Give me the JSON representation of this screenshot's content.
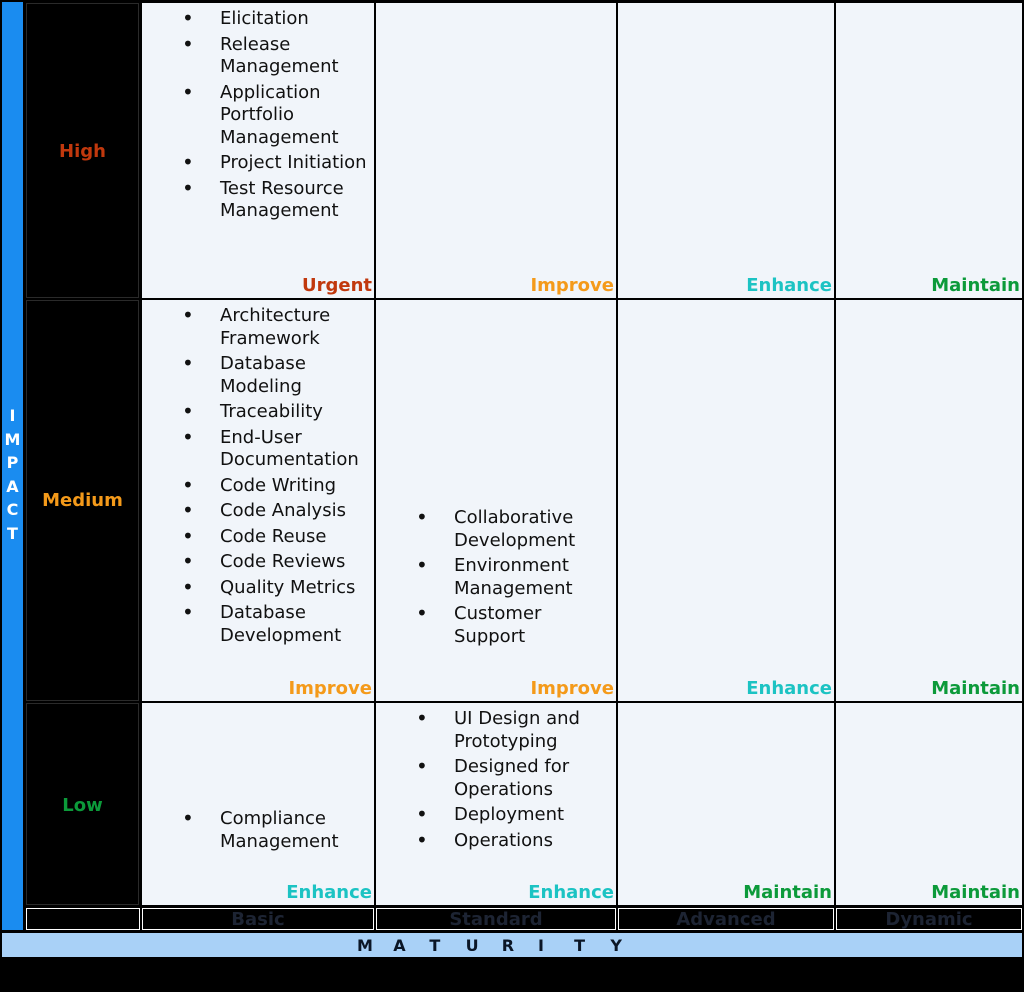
{
  "axis": {
    "impact_letters": [
      "I",
      "M",
      "P",
      "A",
      "C",
      "T"
    ],
    "maturity_letters": [
      "M",
      "A",
      "T",
      "U",
      "R",
      "I",
      "T",
      "Y"
    ]
  },
  "rows": {
    "high": {
      "label": "High"
    },
    "medium": {
      "label": "Medium"
    },
    "low": {
      "label": "Low"
    }
  },
  "columns": [
    "Basic",
    "Standard",
    "Advanced",
    "Dynamic"
  ],
  "cells": {
    "high": {
      "basic": {
        "items": [
          "Elicitation",
          "Release Management",
          "Application Portfolio Management",
          "Project Initiation",
          "Test Resource Management"
        ],
        "status": "Urgent"
      },
      "standard": {
        "status": "Improve"
      },
      "advanced": {
        "status": "Enhance"
      },
      "dynamic": {
        "status": "Maintain"
      }
    },
    "medium": {
      "basic": {
        "items": [
          "Architecture Framework",
          "Database Modeling",
          "Traceability",
          "End-User Documentation",
          "Code Writing",
          "Code Analysis",
          "Code Reuse",
          "Code Reviews",
          "Quality Metrics",
          "Database Development"
        ],
        "status": "Improve"
      },
      "standard": {
        "items": [
          "Collaborative Development",
          "Environment Management",
          "Customer Support"
        ],
        "status": "Improve"
      },
      "advanced": {
        "status": "Enhance"
      },
      "dynamic": {
        "status": "Maintain"
      }
    },
    "low": {
      "basic": {
        "items": [
          "Compliance Management"
        ],
        "status": "Enhance"
      },
      "standard": {
        "items": [
          "UI Design and Prototyping",
          "Designed for Operations",
          "Deployment",
          "Operations"
        ],
        "status": "Enhance"
      },
      "advanced": {
        "status": "Maintain"
      },
      "dynamic": {
        "status": "Maintain"
      }
    }
  },
  "colors": {
    "urgent": "#c1380d",
    "improve": "#f49a1a",
    "enhance": "#1cc3c3",
    "maintain": "#0c9a3a",
    "impact_bar": "#1a8cf0",
    "maturity_bar": "#a9d1f7",
    "cell_background": "#f1f5fa"
  }
}
